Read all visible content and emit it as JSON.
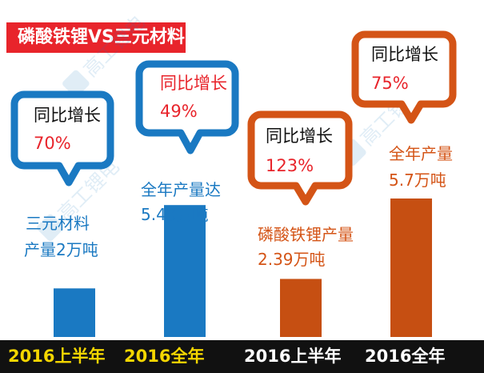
{
  "title": "磷酸铁锂VS三元材料",
  "watermark": "高工锂电",
  "colors": {
    "blue": "#1a79c2",
    "orange": "#d45416",
    "bar_orange": "#c64f12",
    "title_red": "#e8242b",
    "bottom_band": "#111111",
    "yellow": "#f4d600",
    "white": "#ffffff"
  },
  "bubbles": [
    {
      "title": "同比增长",
      "value": "70%"
    },
    {
      "title": "同比增长",
      "value": "49%"
    },
    {
      "title": "同比增长",
      "value": "123%"
    },
    {
      "title": "同比增长",
      "value": "75%"
    }
  ],
  "annotations": [
    {
      "lines": [
        "三元材料",
        "产量2万吨"
      ]
    },
    {
      "lines": [
        "全年产量达",
        "5.43万吨"
      ]
    },
    {
      "lines": [
        "磷酸铁锂产量",
        "2.39万吨"
      ]
    },
    {
      "lines": [
        "全年产量",
        "5.7万吨"
      ]
    }
  ],
  "chart_data": {
    "type": "bar",
    "title": "磷酸铁锂VS三元材料",
    "categories": [
      "2016上半年",
      "2016全年",
      "2016上半年",
      "2016全年"
    ],
    "values": [
      2,
      5.43,
      2.39,
      5.7
    ],
    "unit": "万吨",
    "growth": [
      "70%",
      "49%",
      "123%",
      "75%"
    ],
    "groups": [
      {
        "name": "三元材料",
        "color": "#1a79c2",
        "bars": [
          0,
          1
        ]
      },
      {
        "name": "磷酸铁锂",
        "color": "#c64f12",
        "bars": [
          2,
          3
        ]
      }
    ],
    "ylim": [
      0,
      5.7
    ]
  }
}
